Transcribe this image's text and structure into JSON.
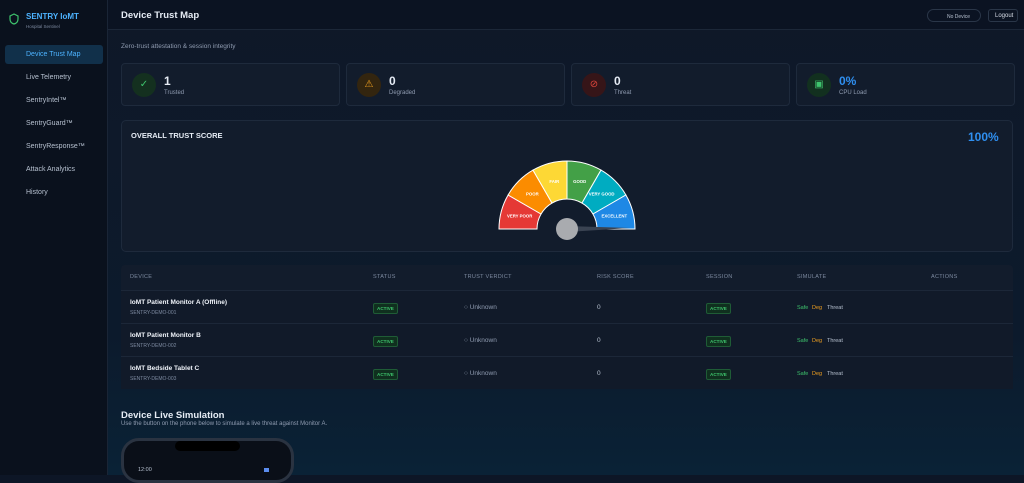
{
  "sidebar": {
    "brand": "SENTRY IoMT",
    "tagline": "Hospital Sentinel",
    "nav": [
      "Device Trust Map",
      "Live Telemetry",
      "SentryIntel™",
      "SentryGuard™",
      "SentryResponse™",
      "Attack Analytics",
      "History"
    ]
  },
  "header": {
    "title": "Device Trust Map",
    "device_button": "No Device",
    "logout": "Logout",
    "subtitle": "Zero-trust attestation & session integrity"
  },
  "stats": [
    {
      "value": "1",
      "label": "Trusted"
    },
    {
      "value": "0",
      "label": "Degraded"
    },
    {
      "value": "0",
      "label": "Threat"
    },
    {
      "value": "0%",
      "label": "CPU Load"
    }
  ],
  "gauge": {
    "title": "OVERALL TRUST SCORE",
    "score": "100%",
    "segments": [
      "VERY POOR",
      "POOR",
      "FAIR",
      "GOOD",
      "VERY GOOD",
      "EXCELLENT"
    ]
  },
  "table": {
    "columns": [
      "DEVICE",
      "STATUS",
      "TRUST VERDICT",
      "RISK SCORE",
      "SESSION",
      "SIMULATE",
      "ACTIONS"
    ],
    "rows": [
      {
        "name": "IoMT Patient Monitor A (Offline)",
        "id": "SENTRY-DEMO-001",
        "status": "ACTIVE",
        "verdict": "Unknown",
        "risk": "0",
        "session": "ACTIVE",
        "simulate": [
          "Safe",
          "Deg",
          "Threat"
        ]
      },
      {
        "name": "IoMT Patient Monitor B",
        "id": "SENTRY-DEMO-002",
        "status": "ACTIVE",
        "verdict": "Unknown",
        "risk": "0",
        "session": "ACTIVE",
        "simulate": [
          "Safe",
          "Deg",
          "Threat"
        ]
      },
      {
        "name": "IoMT Bedside Tablet C",
        "id": "SENTRY-DEMO-003",
        "status": "ACTIVE",
        "verdict": "Unknown",
        "risk": "0",
        "session": "ACTIVE",
        "simulate": [
          "Safe",
          "Deg",
          "Threat"
        ]
      }
    ]
  },
  "simulation": {
    "title": "Device Live Simulation",
    "description": "Use the button on the phone below to simulate a live threat against Monitor A.",
    "phone_time": "12:00"
  }
}
